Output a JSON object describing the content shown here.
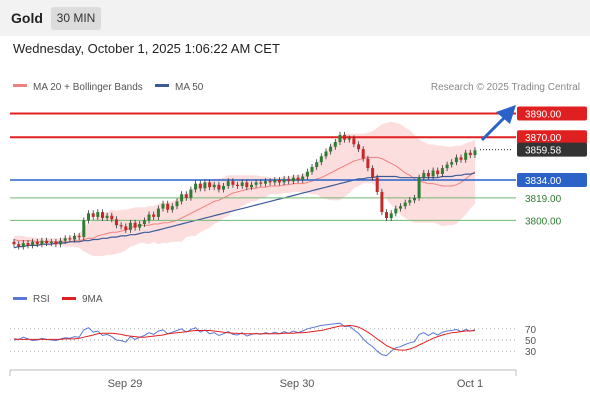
{
  "header": {
    "symbol": "Gold",
    "timeframe": "30 MIN"
  },
  "datetime": "Wednesday, October 1, 2025 1:06:22 AM CET",
  "legend": {
    "ma20_label": "MA 20 + Bollinger Bands",
    "ma50_label": "MA 50",
    "ma20_color": "#f08080",
    "ma50_color": "#3a5a9a",
    "copyright": "Research © 2025 Trading Central"
  },
  "rsi_legend": {
    "rsi_label": "RSI",
    "ma_label": "9MA",
    "rsi_color": "#5a78d8",
    "ma_color": "#e02020"
  },
  "colors": {
    "up": "#2e7d32",
    "down": "#c62828",
    "resistance": "#e02020",
    "pivot": "#2a62c8",
    "support": "#72b872",
    "band_fill": "#fcdede"
  },
  "chart_data": {
    "type": "candlestick",
    "x_ticks": [
      "Sep 29",
      "Sep 30",
      "Oct 1"
    ],
    "ylim": [
      3760,
      3903
    ],
    "last_price": "3859.58",
    "levels": [
      {
        "value": 3890.0,
        "label": "3890.00",
        "role": "resistance"
      },
      {
        "value": 3870.0,
        "label": "3870.00",
        "role": "resistance"
      },
      {
        "value": 3834.0,
        "label": "3834.00",
        "role": "pivot"
      },
      {
        "value": 3819.0,
        "label": "3819.00",
        "role": "support"
      },
      {
        "value": 3800.0,
        "label": "3800.00",
        "role": "support"
      }
    ],
    "close": [
      3780,
      3778,
      3781,
      3779,
      3782,
      3780,
      3783,
      3781,
      3782,
      3780,
      3783,
      3785,
      3784,
      3787,
      3786,
      3800,
      3806,
      3803,
      3807,
      3802,
      3804,
      3801,
      3796,
      3795,
      3792,
      3798,
      3794,
      3797,
      3800,
      3805,
      3803,
      3810,
      3814,
      3809,
      3812,
      3816,
      3822,
      3819,
      3826,
      3831,
      3827,
      3832,
      3828,
      3830,
      3826,
      3829,
      3833,
      3830,
      3829,
      3832,
      3828,
      3830,
      3832,
      3831,
      3833,
      3832,
      3834,
      3832,
      3835,
      3833,
      3836,
      3834,
      3837,
      3841,
      3845,
      3849,
      3854,
      3858,
      3862,
      3866,
      3872,
      3868,
      3869,
      3864,
      3860,
      3852,
      3844,
      3836,
      3824,
      3807,
      3802,
      3806,
      3810,
      3812,
      3815,
      3817,
      3819,
      3836,
      3840,
      3837,
      3842,
      3839,
      3844,
      3847,
      3849,
      3853,
      3851,
      3857,
      3855,
      3859
    ],
    "open_first": 3782,
    "wick": 2.5,
    "ma20": [
      3784,
      3783,
      3783,
      3783,
      3783,
      3782,
      3782,
      3782,
      3782,
      3782,
      3782,
      3782,
      3782,
      3783,
      3783,
      3784,
      3785,
      3785,
      3787,
      3788,
      3789,
      3790,
      3790,
      3791,
      3792,
      3794,
      3795,
      3796,
      3796,
      3796,
      3797,
      3797,
      3798,
      3798,
      3799,
      3800,
      3802,
      3804,
      3806,
      3808,
      3810,
      3812,
      3814,
      3816,
      3817,
      3819,
      3821,
      3823,
      3824,
      3825,
      3826,
      3827,
      3827,
      3828,
      3828,
      3829,
      3829,
      3829,
      3830,
      3830,
      3831,
      3831,
      3831,
      3832,
      3833,
      3835,
      3836,
      3838,
      3840,
      3842,
      3844,
      3846,
      3848,
      3850,
      3851,
      3852,
      3853,
      3853,
      3853,
      3852,
      3850,
      3848,
      3846,
      3843,
      3840,
      3838,
      3835,
      3833,
      3832,
      3831,
      3831,
      3830,
      3829,
      3829,
      3829,
      3830,
      3832,
      3835,
      3838,
      3841
    ],
    "bb_upper": [
      3787,
      3787,
      3787,
      3786,
      3786,
      3785,
      3785,
      3785,
      3785,
      3785,
      3785,
      3786,
      3786,
      3788,
      3789,
      3794,
      3798,
      3800,
      3804,
      3806,
      3807,
      3809,
      3808,
      3809,
      3809,
      3810,
      3811,
      3811,
      3811,
      3812,
      3812,
      3814,
      3815,
      3815,
      3816,
      3818,
      3822,
      3822,
      3825,
      3829,
      3830,
      3832,
      3834,
      3835,
      3835,
      3836,
      3838,
      3838,
      3838,
      3838,
      3838,
      3838,
      3838,
      3837,
      3837,
      3836,
      3836,
      3836,
      3837,
      3837,
      3838,
      3838,
      3839,
      3841,
      3844,
      3848,
      3853,
      3858,
      3863,
      3867,
      3871,
      3872,
      3873,
      3873,
      3873,
      3873,
      3874,
      3875,
      3878,
      3881,
      3882,
      3883,
      3882,
      3881,
      3878,
      3876,
      3872,
      3868,
      3866,
      3864,
      3864,
      3863,
      3863,
      3862,
      3862,
      3863,
      3863,
      3865,
      3866,
      3868
    ],
    "bb_lower": [
      3779,
      3779,
      3779,
      3780,
      3780,
      3779,
      3779,
      3779,
      3779,
      3779,
      3779,
      3778,
      3778,
      3778,
      3777,
      3774,
      3772,
      3770,
      3770,
      3770,
      3771,
      3771,
      3772,
      3773,
      3775,
      3778,
      3779,
      3781,
      3781,
      3780,
      3782,
      3780,
      3781,
      3781,
      3782,
      3782,
      3782,
      3786,
      3787,
      3787,
      3790,
      3792,
      3794,
      3797,
      3799,
      3802,
      3804,
      3808,
      3810,
      3812,
      3814,
      3816,
      3816,
      3819,
      3819,
      3822,
      3822,
      3822,
      3823,
      3823,
      3824,
      3824,
      3823,
      3823,
      3822,
      3822,
      3819,
      3818,
      3817,
      3817,
      3817,
      3820,
      3823,
      3827,
      3829,
      3831,
      3832,
      3831,
      3828,
      3823,
      3818,
      3813,
      3810,
      3805,
      3802,
      3800,
      3798,
      3798,
      3798,
      3798,
      3798,
      3797,
      3795,
      3796,
      3796,
      3797,
      3801,
      3805,
      3810,
      3814
    ],
    "ma50": [
      3777,
      3778,
      3778,
      3779,
      3779,
      3779,
      3780,
      3780,
      3780,
      3781,
      3781,
      3781,
      3782,
      3782,
      3782,
      3783,
      3783,
      3784,
      3784,
      3785,
      3785,
      3786,
      3786,
      3787,
      3787,
      3788,
      3788,
      3789,
      3790,
      3790,
      3791,
      3792,
      3793,
      3794,
      3795,
      3796,
      3797,
      3798,
      3799,
      3800,
      3801,
      3802,
      3803,
      3804,
      3805,
      3806,
      3807,
      3808,
      3809,
      3810,
      3811,
      3812,
      3813,
      3814,
      3815,
      3816,
      3817,
      3818,
      3819,
      3820,
      3821,
      3822,
      3823,
      3824,
      3825,
      3826,
      3827,
      3828,
      3829,
      3830,
      3831,
      3832,
      3833,
      3834,
      3835,
      3835,
      3836,
      3836,
      3837,
      3837,
      3837,
      3837,
      3837,
      3836,
      3836,
      3836,
      3836,
      3836,
      3836,
      3836,
      3836,
      3836,
      3837,
      3837,
      3837,
      3838,
      3838,
      3839,
      3839,
      3840
    ],
    "rsi_ticks": [
      "70",
      "50",
      "30"
    ],
    "rsi": [
      50,
      51,
      55,
      52,
      49,
      50,
      53,
      51,
      50,
      49,
      52,
      54,
      53,
      56,
      55,
      68,
      72,
      64,
      66,
      58,
      60,
      56,
      50,
      49,
      46,
      56,
      51,
      55,
      58,
      63,
      60,
      66,
      68,
      61,
      64,
      67,
      70,
      64,
      69,
      72,
      64,
      68,
      61,
      63,
      58,
      61,
      65,
      60,
      59,
      63,
      57,
      60,
      62,
      60,
      63,
      61,
      64,
      61,
      65,
      62,
      66,
      63,
      66,
      70,
      72,
      74,
      76,
      77,
      78,
      79,
      80,
      74,
      75,
      68,
      62,
      52,
      44,
      38,
      30,
      24,
      22,
      30,
      36,
      38,
      42,
      45,
      47,
      60,
      63,
      58,
      63,
      59,
      64,
      66,
      67,
      69,
      65,
      69,
      66,
      68
    ],
    "rsi_ma": [
      52,
      51,
      51,
      51,
      51,
      51,
      51,
      51,
      51,
      51,
      51,
      52,
      52,
      52,
      53,
      55,
      57,
      59,
      61,
      62,
      62,
      62,
      61,
      60,
      58,
      57,
      56,
      55,
      55,
      56,
      57,
      58,
      59,
      61,
      62,
      63,
      64,
      65,
      66,
      67,
      67,
      67,
      67,
      66,
      65,
      64,
      63,
      62,
      62,
      61,
      61,
      61,
      61,
      61,
      61,
      61,
      61,
      61,
      62,
      62,
      62,
      63,
      63,
      64,
      65,
      66,
      67,
      69,
      71,
      73,
      75,
      75,
      76,
      75,
      73,
      69,
      64,
      58,
      52,
      46,
      40,
      36,
      33,
      32,
      32,
      34,
      37,
      41,
      45,
      49,
      53,
      56,
      59,
      61,
      63,
      64,
      65,
      66,
      66,
      67
    ]
  }
}
